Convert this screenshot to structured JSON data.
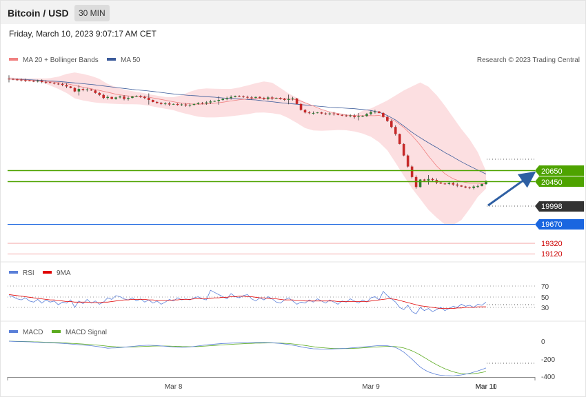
{
  "header": {
    "title": "Bitcoin / USD",
    "interval": "30 MIN"
  },
  "datetime": "Friday, March 10, 2023 9:07:17 AM CET",
  "watermark": "Research © 2023 Trading Central",
  "colors": {
    "ma20": "#f08080",
    "ma50": "#3b5b9a",
    "band": "#fbd9dc",
    "resistance": "#4ea300",
    "pivot": "#1a66e0",
    "support": "#cc0000",
    "last": "#333333",
    "candle_up": "#2e7d32",
    "candle_down": "#c62828",
    "rsi": "#5a7fd8",
    "rsi_ma": "#e00000",
    "macd": "#5a7fd8",
    "macd_signal": "#5aaa1e",
    "arrow": "#2e5fa3"
  },
  "chart_data": [
    {
      "type": "line",
      "name": "price",
      "legend": [
        {
          "name": "MA 20 + Bollinger Bands",
          "color": "#f08080"
        },
        {
          "name": "MA 50",
          "color": "#3b5b9a"
        }
      ],
      "x_labels": [
        "Mar 8",
        "Mar 9",
        "Mar 10",
        "Mar 11"
      ],
      "x_label_pos": [
        40,
        88,
        136,
        152
      ],
      "ylim": [
        18950,
        22200
      ],
      "close": [
        22000,
        21990,
        21985,
        21975,
        21970,
        21960,
        21950,
        21965,
        21940,
        21935,
        21920,
        21905,
        21900,
        21880,
        21850,
        21820,
        21750,
        21800,
        21780,
        21790,
        21770,
        21720,
        21680,
        21620,
        21640,
        21600,
        21630,
        21650,
        21600,
        21620,
        21650,
        21660,
        21640,
        21620,
        21580,
        21540,
        21520,
        21500,
        21510,
        21490,
        21500,
        21480,
        21490,
        21470,
        21480,
        21500,
        21520,
        21510,
        21530,
        21550,
        21560,
        21580,
        21600,
        21620,
        21640,
        21660,
        21650,
        21640,
        21630,
        21620,
        21640,
        21620,
        21600,
        21630,
        21610,
        21620,
        21600,
        21580,
        21600,
        21610,
        21500,
        21380,
        21330,
        21320,
        21320,
        21330,
        21310,
        21300,
        21310,
        21300,
        21280,
        21270,
        21260,
        21270,
        21240,
        21250,
        21260,
        21300,
        21340,
        21350,
        21320,
        21240,
        21160,
        21040,
        20900,
        20700,
        20470,
        20250,
        20040,
        19840,
        19990,
        19970,
        20000,
        19980,
        19930,
        19910,
        19900,
        19920,
        19890,
        19870,
        19850,
        19830,
        19820,
        19850,
        19860,
        19900,
        19960
      ],
      "ma20": [
        22000,
        21995,
        21990,
        21985,
        21980,
        21975,
        21970,
        21965,
        21960,
        21952,
        21945,
        21937,
        21930,
        21917,
        21905,
        21887,
        21870,
        21852,
        21835,
        21820,
        21805,
        21787,
        21770,
        21752,
        21735,
        21715,
        21695,
        21682,
        21670,
        21662,
        21655,
        21652,
        21650,
        21642,
        21635,
        21620,
        21605,
        21590,
        21575,
        21560,
        21545,
        21530,
        21515,
        21508,
        21500,
        21497,
        21495,
        21497,
        21500,
        21507,
        21515,
        21525,
        21535,
        21547,
        21560,
        21572,
        21585,
        21592,
        21600,
        21605,
        21610,
        21612,
        21615,
        21617,
        21620,
        21617,
        21615,
        21607,
        21600,
        21592,
        21585,
        21555,
        21525,
        21492,
        21460,
        21425,
        21390,
        21365,
        21340,
        21325,
        21310,
        21295,
        21280,
        21272,
        21265,
        21265,
        21265,
        21265,
        21265,
        21267,
        21270,
        21250,
        21230,
        21190,
        21150,
        21090,
        21030,
        20950,
        20870,
        20775,
        20680,
        20570,
        20460,
        20360,
        20260,
        20182,
        20105,
        20055,
        20005,
        19977,
        19950,
        19932,
        19915,
        19915,
        19915,
        19910,
        19905
      ],
      "upper": [
        22030,
        22025,
        22020,
        22015,
        22010,
        22010,
        22010,
        22010,
        22010,
        22012,
        22015,
        22030,
        22045,
        22072,
        22100,
        22115,
        22130,
        22115,
        22100,
        22080,
        22060,
        22030,
        22000,
        21950,
        21900,
        21870,
        21840,
        21815,
        21790,
        21772,
        21755,
        21742,
        21730,
        21712,
        21695,
        21680,
        21665,
        21652,
        21640,
        21637,
        21635,
        21655,
        21675,
        21710,
        21745,
        21770,
        21795,
        21802,
        21810,
        21807,
        21805,
        21802,
        21800,
        21800,
        21800,
        21815,
        21830,
        21850,
        21870,
        21892,
        21915,
        21932,
        21950,
        21937,
        21925,
        21872,
        21820,
        21765,
        21710,
        21667,
        21625,
        21577,
        21530,
        21490,
        21450,
        21417,
        21385,
        21362,
        21340,
        21325,
        21310,
        21297,
        21285,
        21280,
        21275,
        21320,
        21365,
        21387,
        21410,
        21450,
        21490,
        21530,
        21570,
        21620,
        21670,
        21720,
        21770,
        21810,
        21850,
        21890,
        21930,
        21887,
        21845,
        21760,
        21675,
        21570,
        21465,
        21347,
        21230,
        21115,
        21000,
        20897,
        20795,
        20665,
        20535,
        20347,
        20160
      ],
      "lower": [
        21980,
        21975,
        21970,
        21965,
        21960,
        21957,
        21955,
        21942,
        21930,
        21900,
        21870,
        21835,
        21800,
        21760,
        21720,
        21665,
        21610,
        21590,
        21570,
        21555,
        21540,
        21530,
        21520,
        21515,
        21510,
        21505,
        21500,
        21497,
        21495,
        21495,
        21495,
        21492,
        21490,
        21477,
        21465,
        21450,
        21435,
        21420,
        21405,
        21390,
        21375,
        21350,
        21325,
        21305,
        21285,
        21265,
        21245,
        21237,
        21230,
        21230,
        21230,
        21235,
        21240,
        21247,
        21255,
        21265,
        21275,
        21285,
        21295,
        21310,
        21325,
        21327,
        21330,
        21322,
        21315,
        21302,
        21290,
        21252,
        21215,
        21167,
        21120,
        21070,
        21020,
        20995,
        20970,
        20967,
        20965,
        20967,
        20970,
        20975,
        20980,
        20977,
        20975,
        20962,
        20950,
        20930,
        20910,
        20877,
        20845,
        20790,
        20735,
        20655,
        20575,
        20450,
        20325,
        20195,
        20065,
        19940,
        19815,
        19707,
        19600,
        19492,
        19385,
        19307,
        19230,
        19160,
        19090,
        19085,
        19080,
        19130,
        19180,
        19290,
        19400,
        19522,
        19645,
        19727,
        19810
      ],
      "ma50": [
        22000,
        21997,
        21995,
        21992,
        21990,
        21985,
        21980,
        21975,
        21970,
        21965,
        21960,
        21955,
        21950,
        21942,
        21935,
        21927,
        21920,
        21912,
        21905,
        21897,
        21890,
        21880,
        21870,
        21860,
        21850,
        21840,
        21830,
        21820,
        21810,
        21800,
        21790,
        21782,
        21775,
        21767,
        21760,
        21750,
        21740,
        21730,
        21720,
        21710,
        21700,
        21692,
        21685,
        21677,
        21670,
        21665,
        21660,
        21652,
        21645,
        21640,
        21635,
        21627,
        21620,
        21615,
        21610,
        21605,
        21600,
        21595,
        21590,
        21585,
        21580,
        21570,
        21560,
        21552,
        21545,
        21535,
        21525,
        21517,
        21510,
        21502,
        21495,
        21487,
        21480,
        21472,
        21465,
        21457,
        21450,
        21442,
        21435,
        21430,
        21425,
        21420,
        21415,
        21410,
        21405,
        21397,
        21390,
        21380,
        21370,
        21352,
        21335,
        21302,
        21270,
        21225,
        21180,
        21120,
        21060,
        20997,
        20935,
        20880,
        20825,
        20775,
        20725,
        20677,
        20630,
        20580,
        20530,
        20485,
        20440,
        20392,
        20345,
        20302,
        20260,
        20220,
        20180,
        20140,
        20100
      ]
    },
    {
      "type": "line",
      "name": "RSI",
      "legend": [
        {
          "name": "RSI",
          "color": "#5a7fd8"
        },
        {
          "name": "9MA",
          "color": "#e00000"
        }
      ],
      "levels": [
        70,
        50,
        30
      ],
      "ylim": [
        0,
        100
      ],
      "rsi": [
        52,
        50,
        46,
        44,
        48,
        42,
        40,
        45,
        38,
        44,
        40,
        42,
        35,
        40,
        38,
        44,
        30,
        42,
        37,
        45,
        38,
        42,
        36,
        40,
        48,
        45,
        52,
        50,
        46,
        44,
        48,
        42,
        46,
        40,
        44,
        38,
        42,
        36,
        40,
        45,
        42,
        48,
        44,
        46,
        44,
        48,
        50,
        46,
        44,
        62,
        58,
        54,
        50,
        46,
        56,
        50,
        48,
        52,
        54,
        46,
        42,
        48,
        44,
        50,
        46,
        40,
        38,
        44,
        48,
        42,
        36,
        40,
        38,
        44,
        40,
        46,
        42,
        38,
        44,
        40,
        36,
        42,
        40,
        46,
        42,
        38,
        44,
        40,
        48,
        50,
        44,
        60,
        52,
        46,
        40,
        30,
        26,
        34,
        22,
        18,
        30,
        24,
        28,
        22,
        26,
        30,
        24,
        28,
        32,
        30,
        36,
        32,
        34,
        30,
        36,
        34,
        40
      ],
      "rsi_ma": [
        54,
        53,
        52,
        51,
        50,
        49,
        48,
        47,
        46,
        45,
        44,
        44,
        43,
        42,
        41,
        41,
        40,
        40,
        40,
        40,
        39,
        39,
        39,
        40,
        40,
        41,
        42,
        43,
        44,
        44,
        45,
        45,
        45,
        45,
        44,
        44,
        43,
        43,
        43,
        43,
        44,
        44,
        45,
        45,
        45,
        46,
        46,
        46,
        46,
        47,
        48,
        48,
        49,
        49,
        50,
        50,
        51,
        51,
        50,
        50,
        49,
        48,
        48,
        47,
        46,
        46,
        45,
        44,
        44,
        44,
        43,
        43,
        42,
        42,
        42,
        42,
        42,
        42,
        42,
        42,
        41,
        41,
        41,
        41,
        41,
        41,
        41,
        41,
        42,
        43,
        44,
        45,
        46,
        46,
        45,
        43,
        41,
        39,
        37,
        35,
        33,
        32,
        31,
        30,
        29,
        28,
        28,
        28,
        28,
        29,
        29,
        30,
        30,
        30,
        31,
        31,
        31
      ]
    },
    {
      "type": "line",
      "name": "MACD",
      "legend": [
        {
          "name": "MACD",
          "color": "#5a7fd8"
        },
        {
          "name": "MACD Signal",
          "color": "#5aaa1e"
        }
      ],
      "y_ticks": [
        0,
        -200,
        -400
      ],
      "ylim": [
        -420,
        40
      ],
      "macd": [
        0,
        -2,
        -4,
        -5,
        -6,
        -8,
        -10,
        -12,
        -14,
        -16,
        -18,
        -20,
        -22,
        -25,
        -28,
        -32,
        -36,
        -40,
        -44,
        -48,
        -52,
        -58,
        -64,
        -72,
        -80,
        -78,
        -76,
        -72,
        -68,
        -64,
        -60,
        -55,
        -50,
        -48,
        -46,
        -48,
        -50,
        -54,
        -58,
        -62,
        -66,
        -68,
        -70,
        -68,
        -66,
        -60,
        -54,
        -48,
        -42,
        -38,
        -34,
        -30,
        -26,
        -24,
        -22,
        -20,
        -18,
        -17,
        -16,
        -15,
        -14,
        -14,
        -14,
        -16,
        -18,
        -22,
        -26,
        -32,
        -38,
        -46,
        -54,
        -64,
        -74,
        -80,
        -86,
        -88,
        -90,
        -90,
        -90,
        -88,
        -86,
        -84,
        -82,
        -78,
        -74,
        -70,
        -66,
        -62,
        -58,
        -54,
        -50,
        -50,
        -52,
        -60,
        -72,
        -95,
        -125,
        -165,
        -205,
        -250,
        -295,
        -325,
        -350,
        -365,
        -380,
        -388,
        -392,
        -394,
        -395,
        -390,
        -384,
        -376,
        -366,
        -352,
        -338,
        -322,
        -305
      ],
      "signal": [
        0,
        -1,
        -2,
        -3,
        -4,
        -5,
        -7,
        -8,
        -10,
        -12,
        -14,
        -16,
        -17,
        -19,
        -21,
        -24,
        -27,
        -30,
        -33,
        -36,
        -39,
        -43,
        -47,
        -52,
        -57,
        -61,
        -64,
        -66,
        -67,
        -67,
        -66,
        -64,
        -62,
        -60,
        -58,
        -56,
        -55,
        -55,
        -55,
        -56,
        -58,
        -59,
        -61,
        -62,
        -63,
        -62,
        -61,
        -58,
        -55,
        -52,
        -49,
        -45,
        -42,
        -39,
        -36,
        -33,
        -31,
        -29,
        -27,
        -25,
        -23,
        -22,
        -21,
        -20,
        -20,
        -21,
        -22,
        -24,
        -27,
        -31,
        -36,
        -42,
        -49,
        -56,
        -63,
        -69,
        -74,
        -78,
        -81,
        -83,
        -84,
        -84,
        -84,
        -83,
        -81,
        -79,
        -76,
        -73,
        -70,
        -67,
        -64,
        -62,
        -60,
        -60,
        -62,
        -68,
        -78,
        -92,
        -110,
        -132,
        -158,
        -186,
        -214,
        -242,
        -268,
        -292,
        -314,
        -332,
        -348,
        -360,
        -368,
        -372,
        -373,
        -370,
        -364,
        -356,
        -345
      ]
    }
  ],
  "levels": {
    "resistance_1": "20650",
    "resistance_2": "20450",
    "last": "19998",
    "pivot": "19670",
    "support_1": "19320",
    "support_2": "19120"
  },
  "rsi_labels": [
    "70",
    "50",
    "30"
  ],
  "macd_labels": [
    "0",
    "-200",
    "-400"
  ]
}
